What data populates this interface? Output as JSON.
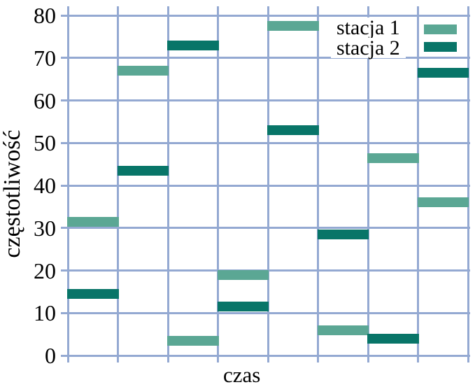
{
  "chart_data": {
    "type": "bar",
    "subtype": "frequency-hopping-segments",
    "title": "",
    "xlabel": "czas",
    "ylabel": "częstotliwość",
    "ylim": [
      0,
      80
    ],
    "yticks": [
      0,
      10,
      20,
      30,
      40,
      50,
      60,
      70,
      80
    ],
    "ytick_labels": [
      "0",
      "10",
      "20",
      "30",
      "40",
      "50",
      "60",
      "70",
      "80"
    ],
    "num_time_slots": 8,
    "grid": true,
    "grid_color": "#94a9d2",
    "text_color": "#000000",
    "legend_position": "top-right-inside",
    "bar_segment_height_units": 2.3,
    "series": [
      {
        "name": "stacja 1",
        "color": "#5ba794",
        "values": [
          31.5,
          67,
          3.5,
          19,
          77.5,
          6,
          46.5,
          36
        ]
      },
      {
        "name": "stacja 2",
        "color": "#087568",
        "values": [
          14.5,
          43.5,
          73,
          11.5,
          53,
          28.5,
          4,
          66.5
        ]
      }
    ]
  }
}
